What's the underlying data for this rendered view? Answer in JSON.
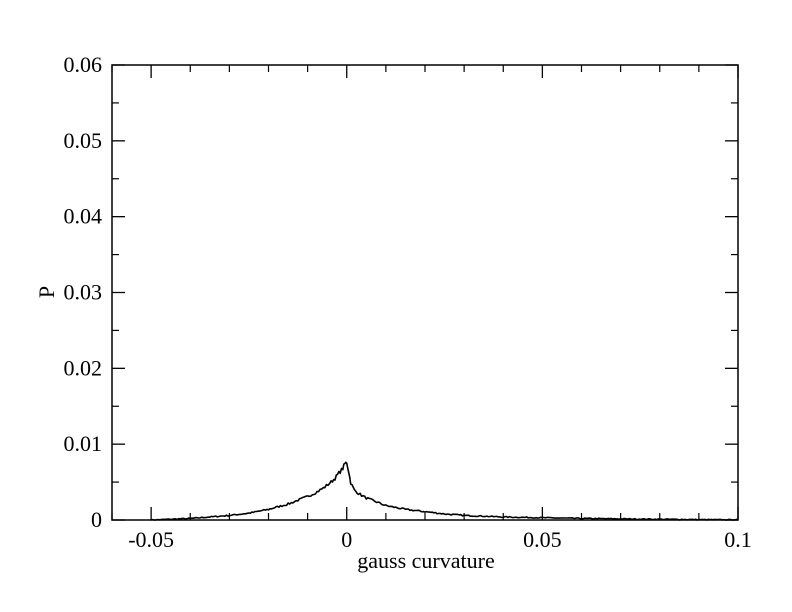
{
  "chart_data": {
    "type": "line",
    "title": "",
    "xlabel": "gauss curvature",
    "ylabel": "P",
    "xlim": [
      -0.06,
      0.1
    ],
    "ylim": [
      0,
      0.06
    ],
    "x_ticks": [
      -0.05,
      0,
      0.05,
      0.1
    ],
    "x_tick_labels": [
      "-0.05",
      "0",
      "0.05",
      "0.1"
    ],
    "y_ticks": [
      0,
      0.01,
      0.02,
      0.03,
      0.04,
      0.05,
      0.06
    ],
    "y_tick_labels": [
      "0",
      "0.01",
      "0.02",
      "0.03",
      "0.04",
      "0.05",
      "0.06"
    ],
    "grid": false,
    "legend": "none",
    "line_color": "#000000",
    "series": [
      {
        "x": [
          -0.05,
          -0.045,
          -0.04,
          -0.035,
          -0.03,
          -0.025,
          -0.02,
          -0.015,
          -0.01,
          -0.008,
          -0.006,
          -0.004,
          -0.003,
          -0.002,
          -0.001,
          -0.0005,
          0,
          0.0005,
          0.001,
          0.002,
          0.003,
          0.005,
          0.008,
          0.01,
          0.015,
          0.02,
          0.025,
          0.03,
          0.035,
          0.04,
          0.05,
          0.06,
          0.07,
          0.08,
          0.09,
          0.1
        ],
        "y": [
          0.0,
          0.0001,
          0.0002,
          0.0004,
          0.0006,
          0.0009,
          0.0014,
          0.0021,
          0.0031,
          0.0036,
          0.0042,
          0.005,
          0.0055,
          0.0062,
          0.0068,
          0.0074,
          0.0076,
          0.0064,
          0.0049,
          0.0039,
          0.0035,
          0.0029,
          0.0023,
          0.0019,
          0.0014,
          0.0011,
          0.0008,
          0.0006,
          0.0005,
          0.0004,
          0.0003,
          0.0002,
          0.00015,
          0.0001,
          5e-05,
          2e-05
        ]
      }
    ]
  }
}
